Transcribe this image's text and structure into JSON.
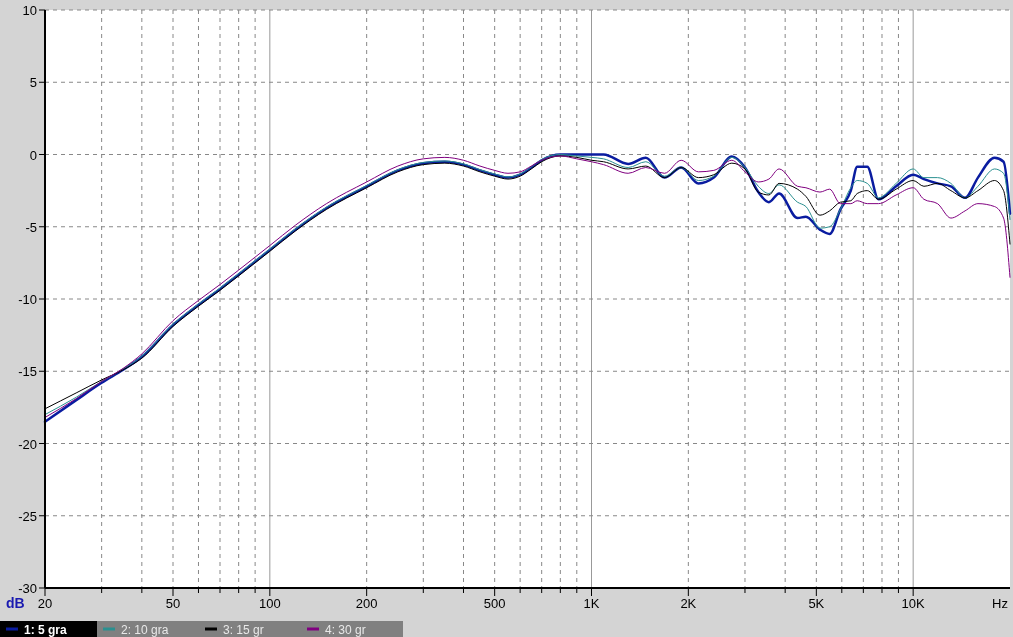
{
  "chart_data": {
    "type": "line",
    "xlabel": "Hz",
    "ylabel": "dB",
    "log": "x",
    "grid": true,
    "legend": "bottom",
    "line_style": "solid",
    "marker": "none",
    "x": [
      20,
      25,
      30,
      35,
      40,
      50,
      60,
      70,
      80,
      100,
      120,
      150,
      200,
      250,
      300,
      350,
      400,
      450,
      500,
      550,
      600,
      650,
      700,
      800,
      900,
      1000,
      1090,
      1300,
      1475,
      1686,
      1900,
      2150,
      2400,
      2730,
      3000,
      3300,
      3560,
      3830,
      4370,
      4640,
      5130,
      5500,
      5940,
      6400,
      6700,
      7200,
      7800,
      8850,
      10000,
      10800,
      11900,
      13100,
      14500,
      15900,
      17900,
      19100,
      20000
    ],
    "xlim": [
      20,
      20000
    ],
    "xticks": [
      20,
      {
        "value": 30,
        "label": null
      },
      {
        "value": 40,
        "label": null
      },
      50,
      {
        "value": 60,
        "label": null
      },
      {
        "value": 70,
        "label": null
      },
      {
        "value": 80,
        "label": null
      },
      {
        "value": 90,
        "label": null
      },
      100,
      200,
      {
        "value": 300,
        "label": null
      },
      {
        "value": 400,
        "label": null
      },
      500,
      {
        "value": 600,
        "label": null
      },
      {
        "value": 700,
        "label": null
      },
      {
        "value": 800,
        "label": null
      },
      {
        "value": 900,
        "label": null
      },
      {
        "value": 1000,
        "label": "1K"
      },
      {
        "value": 2000,
        "label": "2K"
      },
      {
        "value": 3000,
        "label": null
      },
      {
        "value": 4000,
        "label": null
      },
      {
        "value": 5000,
        "label": "5K"
      },
      {
        "value": 6000,
        "label": null
      },
      {
        "value": 7000,
        "label": null
      },
      {
        "value": 8000,
        "label": null
      },
      {
        "value": 9000,
        "label": null
      },
      {
        "value": 10000,
        "label": "10K"
      }
    ],
    "ylim": [
      -30,
      10
    ],
    "yticks": [
      -30,
      -25,
      -20,
      -15,
      -10,
      -5,
      0,
      5,
      10
    ],
    "series": [
      {
        "name": "1: 5 gra",
        "color": "#0a1ca0",
        "values": [
          -18.5,
          -17.0,
          -15.8,
          -14.9,
          -14.0,
          -11.8,
          -10.4,
          -9.3,
          -8.3,
          -6.6,
          -5.2,
          -3.7,
          -2.2,
          -1.1,
          -0.6,
          -0.5,
          -0.7,
          -1.1,
          -1.4,
          -1.6,
          -1.4,
          -0.9,
          -0.4,
          0,
          0,
          0,
          0,
          -0.65,
          -0.23,
          -1.6,
          -0.9,
          -2.0,
          -1.6,
          -0.14,
          -0.9,
          -2.6,
          -3.3,
          -2.7,
          -4.4,
          -4.3,
          -5.2,
          -5.5,
          -3.8,
          -2.5,
          -0.84,
          -0.84,
          -3.1,
          -2.2,
          -1.4,
          -1.7,
          -2.0,
          -2.2,
          -3.0,
          -1.6,
          -0.23,
          -0.5,
          -4.1
        ]
      },
      {
        "name": "2: 10 gra",
        "color": "#2a9090",
        "values": [
          -18.0,
          -16.8,
          -15.7,
          -14.85,
          -13.95,
          -11.75,
          -10.35,
          -9.25,
          -8.25,
          -6.55,
          -5.15,
          -3.65,
          -2.15,
          -1.05,
          -0.55,
          -0.45,
          -0.65,
          -1.05,
          -1.35,
          -1.55,
          -1.35,
          -0.85,
          -0.35,
          0,
          -0.1,
          -0.2,
          -0.3,
          -0.9,
          -0.5,
          -1.5,
          -0.9,
          -1.8,
          -1.5,
          -0.2,
          -0.9,
          -2.2,
          -2.7,
          -2.1,
          -3.3,
          -3.6,
          -5.1,
          -5.0,
          -3.8,
          -2.3,
          -1.8,
          -2.0,
          -3.0,
          -2.0,
          -1.0,
          -1.6,
          -1.6,
          -2.0,
          -3.0,
          -2.2,
          -1.0,
          -1.3,
          -4.5
        ]
      },
      {
        "name": "3: 15 gr",
        "color": "#000000",
        "values": [
          -17.6,
          -16.5,
          -15.6,
          -14.9,
          -14.1,
          -11.9,
          -10.5,
          -9.4,
          -8.4,
          -6.7,
          -5.3,
          -3.8,
          -2.3,
          -1.2,
          -0.7,
          -0.6,
          -0.8,
          -1.2,
          -1.5,
          -1.7,
          -1.5,
          -1.0,
          -0.5,
          -0.1,
          -0.2,
          -0.4,
          -0.5,
          -1.0,
          -0.8,
          -1.6,
          -0.9,
          -1.6,
          -1.4,
          -0.6,
          -1.0,
          -2.6,
          -2.8,
          -2.0,
          -2.4,
          -2.9,
          -4.2,
          -3.9,
          -3.3,
          -3.2,
          -2.7,
          -2.5,
          -3.1,
          -2.4,
          -1.8,
          -2.2,
          -2.0,
          -2.5,
          -3.0,
          -2.5,
          -1.8,
          -2.5,
          -6.2
        ]
      },
      {
        "name": "4: 30 gr",
        "color": "#800080",
        "values": [
          -18.2,
          -16.9,
          -15.7,
          -14.8,
          -13.8,
          -11.5,
          -10.1,
          -9.0,
          -8.0,
          -6.3,
          -4.9,
          -3.4,
          -1.9,
          -0.8,
          -0.3,
          -0.2,
          -0.4,
          -0.8,
          -1.1,
          -1.3,
          -1.2,
          -0.8,
          -0.4,
          -0.1,
          -0.3,
          -0.5,
          -0.7,
          -1.3,
          -0.9,
          -1.3,
          -0.4,
          -1.2,
          -1.1,
          -0.4,
          -1.2,
          -1.9,
          -1.7,
          -1.0,
          -2.2,
          -2.3,
          -2.6,
          -2.4,
          -3.4,
          -3.4,
          -3.2,
          -3.4,
          -3.4,
          -2.8,
          -2.3,
          -3.1,
          -3.4,
          -4.4,
          -3.9,
          -3.4,
          -3.6,
          -4.4,
          -8.5
        ]
      }
    ]
  }
}
